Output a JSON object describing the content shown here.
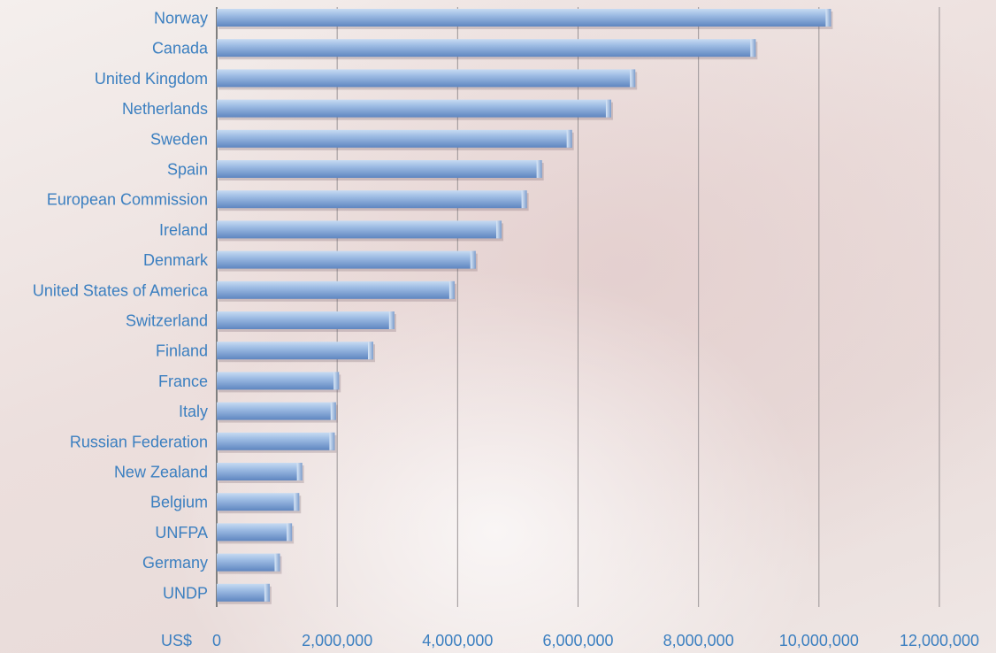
{
  "chart_data": {
    "type": "bar",
    "orientation": "horizontal",
    "title": "",
    "xlabel": "",
    "ylabel": "",
    "x_unit_label": "US$",
    "categories": [
      "Norway",
      "Canada",
      "United Kingdom",
      "Netherlands",
      "Sweden",
      "Spain",
      "European Commission",
      "Ireland",
      "Denmark",
      "United States of America",
      "Switzerland",
      "Finland",
      "France",
      "Italy",
      "Russian Federation",
      "New Zealand",
      "Belgium",
      "UNFPA",
      "Germany",
      "UNDP"
    ],
    "values": [
      10200000,
      8950000,
      6950000,
      6550000,
      5900000,
      5400000,
      5150000,
      4730000,
      4300000,
      3950000,
      2950000,
      2600000,
      2030000,
      1980000,
      1960000,
      1420000,
      1370000,
      1250000,
      1050000,
      880000
    ],
    "xlim": [
      0,
      12000000
    ],
    "xticks": [
      0,
      2000000,
      4000000,
      6000000,
      8000000,
      10000000,
      12000000
    ],
    "xtick_labels": [
      "0",
      "2,000,000",
      "4,000,000",
      "6,000,000",
      "8,000,000",
      "10,000,000",
      "12,000,000"
    ],
    "grid": true,
    "legend": "none",
    "colors": {
      "bar_light": "#bcd3ee",
      "bar_mid": "#8fb0dc",
      "bar_dark": "#5f86c0",
      "text": "#3b7fc0",
      "grid": "#9a9496",
      "axis": "#7f7f7f"
    }
  }
}
